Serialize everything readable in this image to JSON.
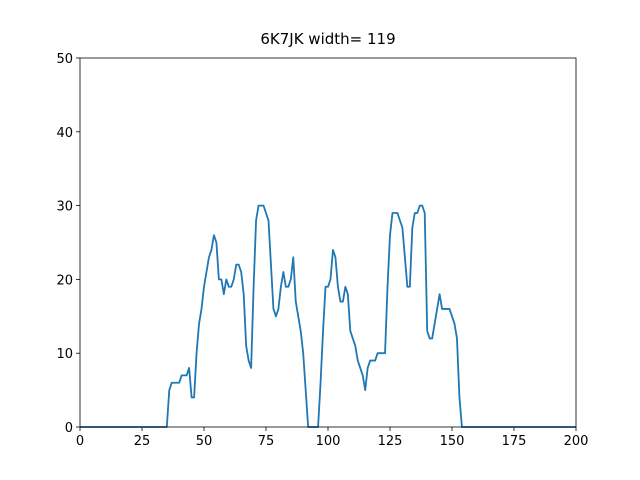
{
  "chart_data": {
    "type": "line",
    "title": "6K7JK width= 119",
    "color": "#1f77b4",
    "x": [
      0,
      1,
      2,
      3,
      4,
      5,
      6,
      7,
      8,
      9,
      10,
      11,
      12,
      13,
      14,
      15,
      16,
      17,
      18,
      19,
      20,
      21,
      22,
      23,
      24,
      25,
      26,
      27,
      28,
      29,
      30,
      31,
      32,
      33,
      34,
      35,
      36,
      37,
      38,
      39,
      40,
      41,
      42,
      43,
      44,
      45,
      46,
      47,
      48,
      49,
      50,
      51,
      52,
      53,
      54,
      55,
      56,
      57,
      58,
      59,
      60,
      61,
      62,
      63,
      64,
      65,
      66,
      67,
      68,
      69,
      70,
      71,
      72,
      73,
      74,
      75,
      76,
      77,
      78,
      79,
      80,
      81,
      82,
      83,
      84,
      85,
      86,
      87,
      88,
      89,
      90,
      91,
      92,
      93,
      94,
      95,
      96,
      97,
      98,
      99,
      100,
      101,
      102,
      103,
      104,
      105,
      106,
      107,
      108,
      109,
      110,
      111,
      112,
      113,
      114,
      115,
      116,
      117,
      118,
      119,
      120,
      121,
      122,
      123,
      124,
      125,
      126,
      127,
      128,
      129,
      130,
      131,
      132,
      133,
      134,
      135,
      136,
      137,
      138,
      139,
      140,
      141,
      142,
      143,
      144,
      145,
      146,
      147,
      148,
      149,
      150,
      151,
      152,
      153,
      154,
      155,
      156,
      157,
      158,
      159,
      160,
      161,
      162,
      163,
      164,
      165,
      166,
      167,
      168,
      169,
      170,
      171,
      172,
      173,
      174,
      175,
      176,
      177,
      178,
      179,
      180,
      181,
      182,
      183,
      184,
      185,
      186,
      187,
      188,
      189,
      190,
      191,
      192,
      193,
      194,
      195,
      196,
      197,
      198,
      199,
      200
    ],
    "values": [
      0,
      0,
      0,
      0,
      0,
      0,
      0,
      0,
      0,
      0,
      0,
      0,
      0,
      0,
      0,
      0,
      0,
      0,
      0,
      0,
      0,
      0,
      0,
      0,
      0,
      0,
      0,
      0,
      0,
      0,
      0,
      0,
      0,
      0,
      0,
      0,
      5,
      6,
      6,
      6,
      6,
      7,
      7,
      7,
      8,
      4,
      4,
      10,
      14,
      16,
      19,
      21,
      23,
      24,
      26,
      25,
      20,
      20,
      18,
      20,
      19,
      19,
      20,
      22,
      22,
      21,
      18,
      11,
      9,
      8,
      19,
      28,
      30,
      30,
      30,
      29,
      28,
      22,
      16,
      15,
      16,
      19,
      21,
      19,
      19,
      20,
      23,
      17,
      15,
      13,
      10,
      5,
      0,
      0,
      0,
      0,
      0,
      6,
      13,
      19,
      19,
      20,
      24,
      23,
      19,
      17,
      17,
      19,
      18,
      13,
      12,
      11,
      9,
      8,
      7,
      5,
      8,
      9,
      9,
      9,
      10,
      10,
      10,
      10,
      19,
      26,
      29,
      29,
      29,
      28,
      27,
      23,
      19,
      19,
      27,
      29,
      29,
      30,
      30,
      29,
      13,
      12,
      12,
      14,
      16,
      18,
      16,
      16,
      16,
      16,
      15,
      14,
      12,
      4,
      0,
      0,
      0,
      0,
      0,
      0,
      0,
      0,
      0,
      0,
      0,
      0,
      0,
      0,
      0,
      0,
      0,
      0,
      0,
      0,
      0,
      0,
      0,
      0,
      0,
      0,
      0,
      0,
      0,
      0,
      0,
      0,
      0,
      0,
      0,
      0,
      0,
      0,
      0,
      0,
      0,
      0,
      0,
      0,
      0,
      0,
      0
    ],
    "xlim": [
      0,
      200
    ],
    "xticks": [
      0,
      25,
      50,
      75,
      100,
      125,
      150,
      175,
      200
    ],
    "ylim": [
      0,
      50
    ],
    "yticks": [
      0,
      10,
      20,
      30,
      40,
      50
    ],
    "grid": false
  }
}
